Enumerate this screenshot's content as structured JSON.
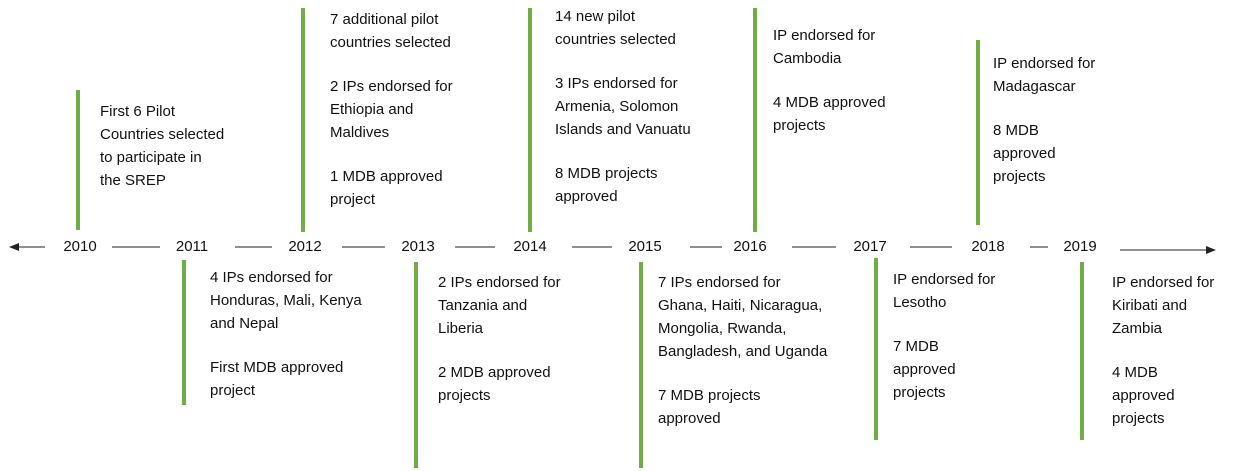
{
  "years": [
    {
      "year": "2010",
      "paragraphs": [
        [
          "First 6 Pilot",
          "Countries selected",
          "to participate in",
          "the SREP"
        ]
      ]
    },
    {
      "year": "2011",
      "paragraphs": [
        [
          "4 IPs endorsed for",
          "Honduras, Mali, Kenya",
          "and Nepal"
        ],
        [
          "First MDB approved",
          "project"
        ]
      ]
    },
    {
      "year": "2012",
      "paragraphs": [
        [
          "7 additional pilot",
          "countries selected"
        ],
        [
          "2 IPs endorsed for",
          "Ethiopia and",
          "Maldives"
        ],
        [
          "1 MDB approved",
          "project"
        ]
      ]
    },
    {
      "year": "2013",
      "paragraphs": [
        [
          "2 IPs endorsed for",
          "Tanzania and",
          "Liberia"
        ],
        [
          "2 MDB approved",
          "projects"
        ]
      ]
    },
    {
      "year": "2014",
      "paragraphs": [
        [
          "14 new pilot",
          "countries selected"
        ],
        [
          "3 IPs endorsed for",
          "Armenia, Solomon",
          "Islands and Vanuatu"
        ],
        [
          "8 MDB projects",
          "approved"
        ]
      ]
    },
    {
      "year": "2015",
      "paragraphs": [
        [
          "7 IPs endorsed for",
          "Ghana, Haiti, Nicaragua,",
          "Mongolia, Rwanda,",
          "Bangladesh, and Uganda"
        ],
        [
          "7 MDB projects",
          "approved"
        ]
      ]
    },
    {
      "year": "2016",
      "paragraphs": [
        [
          "IP endorsed for",
          "Cambodia"
        ],
        [
          "4 MDB approved",
          "projects"
        ]
      ]
    },
    {
      "year": "2017",
      "paragraphs": [
        [
          "IP endorsed for",
          "Lesotho"
        ],
        [
          "7 MDB",
          "approved",
          "projects"
        ]
      ]
    },
    {
      "year": "2018",
      "paragraphs": [
        [
          "IP endorsed for",
          "Madagascar"
        ],
        [
          "8 MDB",
          "approved",
          "projects"
        ]
      ]
    },
    {
      "year": "2019",
      "paragraphs": [
        [
          "IP endorsed for",
          "Kiribati and",
          "Zambia"
        ],
        [
          "4 MDB",
          "approved",
          "projects"
        ]
      ]
    }
  ]
}
